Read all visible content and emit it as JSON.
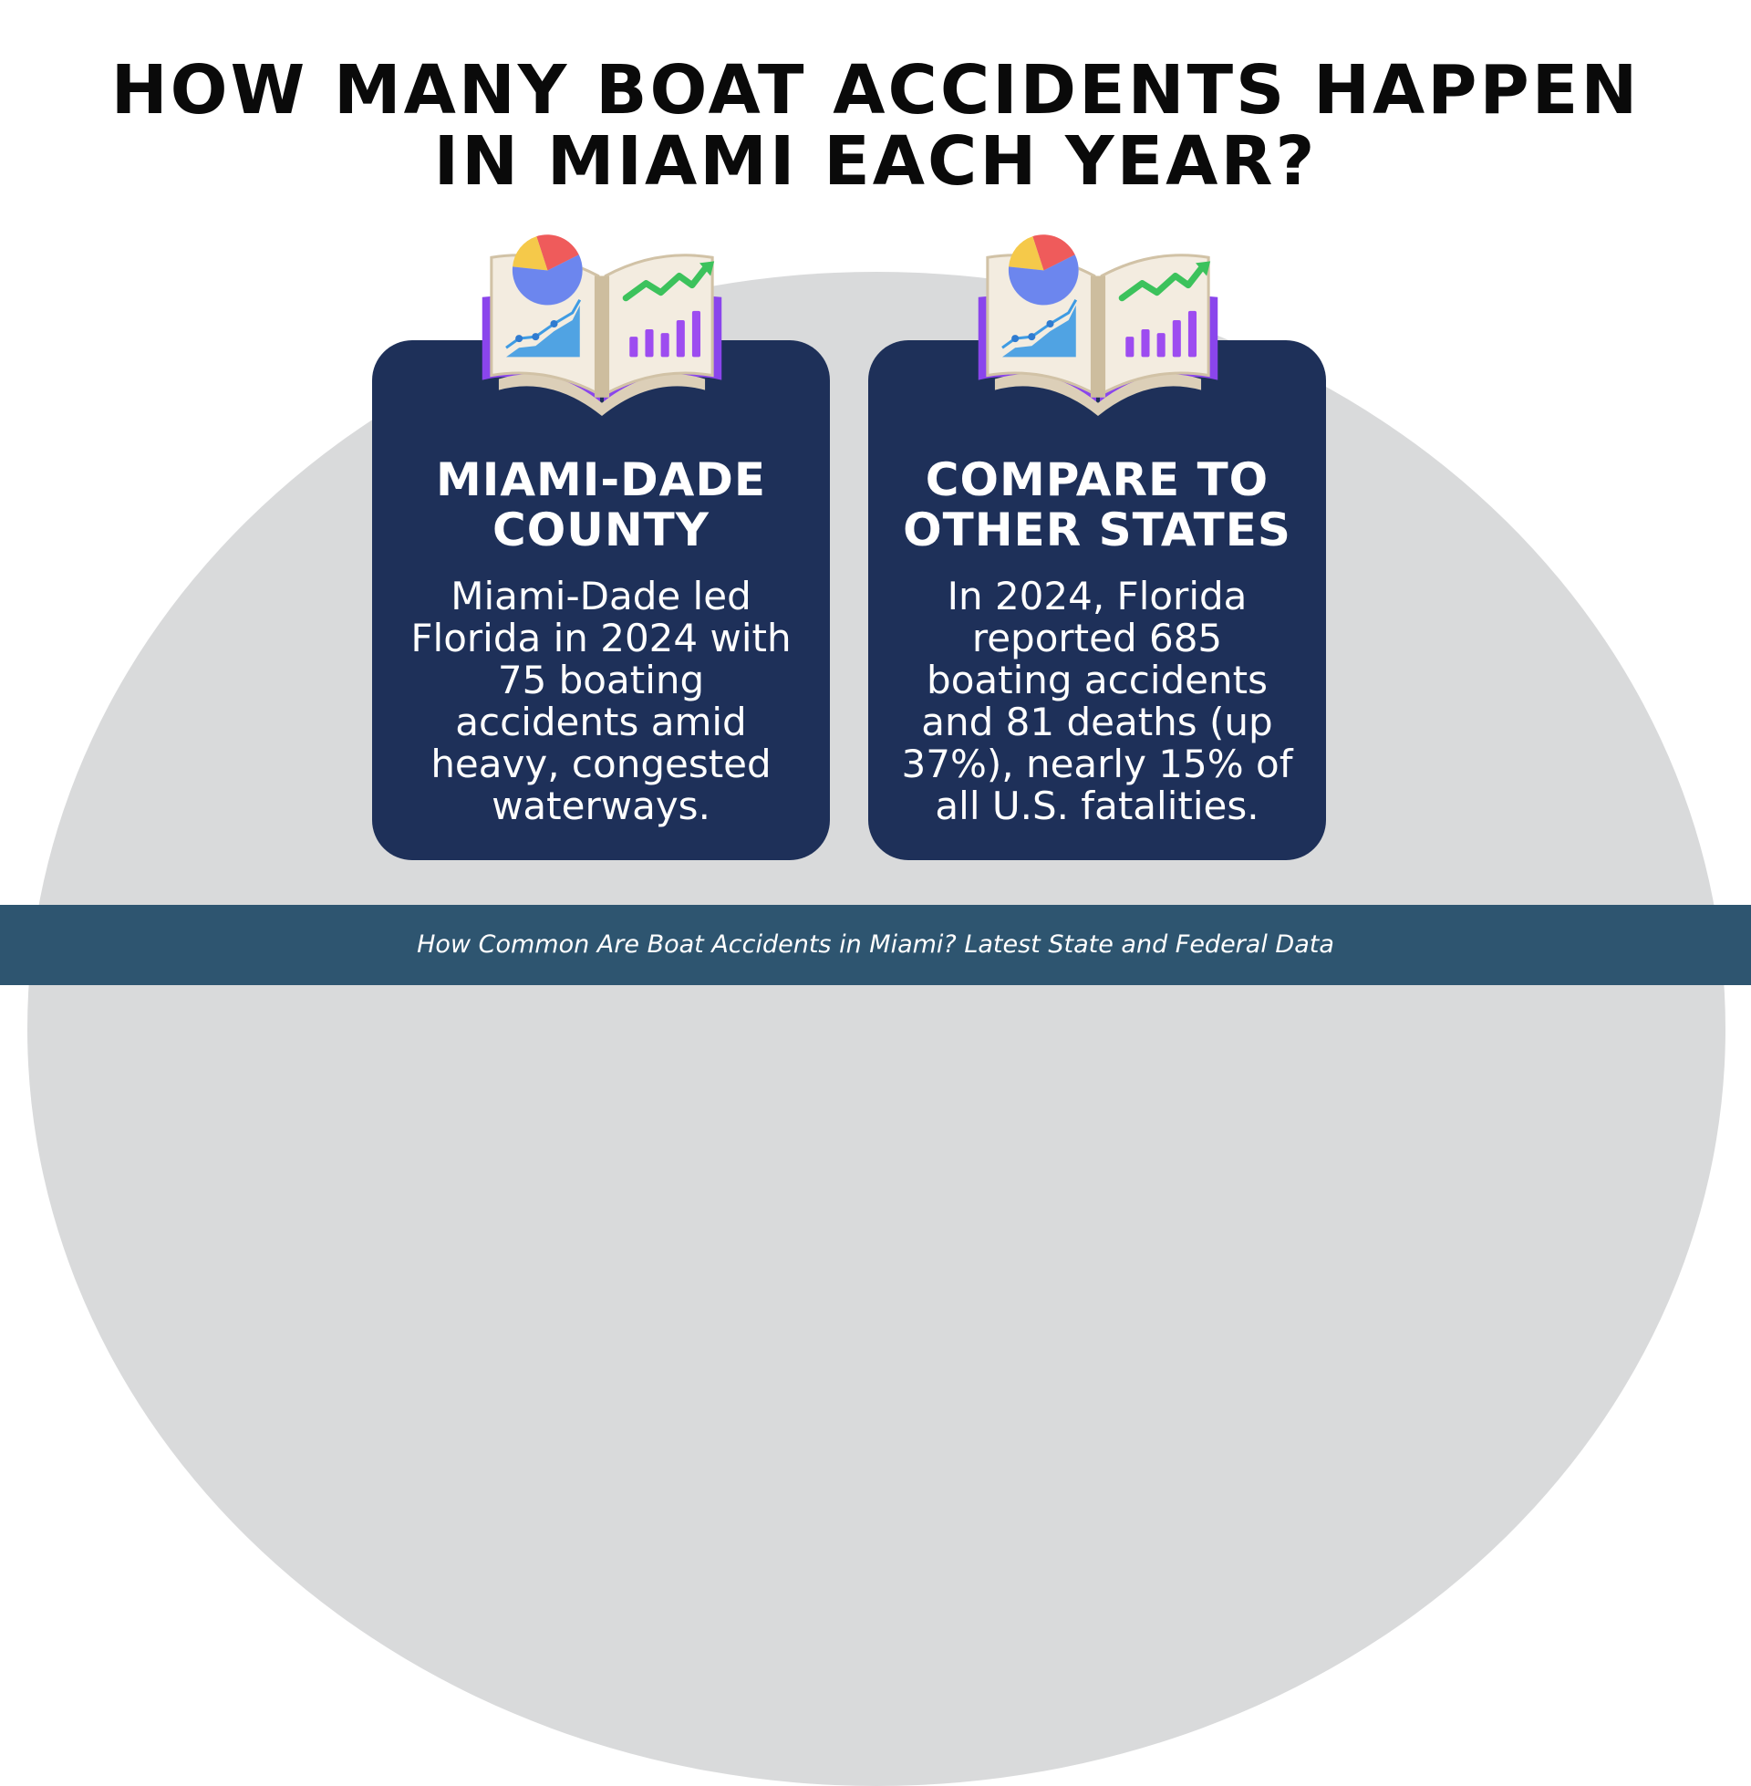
{
  "title": {
    "line1": "HOW MANY BOAT ACCIDENTS HAPPEN",
    "line2": "IN MIAMI EACH YEAR?"
  },
  "cards": [
    {
      "icon": "statistics-book-icon",
      "heading": [
        "MIAMI-DADE",
        "COUNTY"
      ],
      "body": [
        "Miami-Dade led",
        "Florida in 2024 with",
        "75 boating",
        "accidents amid",
        "heavy, congested",
        "waterways."
      ]
    },
    {
      "icon": "statistics-book-icon",
      "heading": [
        "COMPARE TO",
        "OTHER STATES"
      ],
      "body": [
        "In 2024, Florida",
        "reported 685",
        "boating accidents",
        "and 81 deaths (up",
        "37%), nearly 15% of",
        "all U.S. fatalities."
      ]
    }
  ],
  "footer": {
    "text": "How Common Are Boat Accidents in Miami? Latest State and Federal Data"
  },
  "colors": {
    "card_background": "#1e3059",
    "footer_background": "#2e5570",
    "arc_background": "#d9dadb",
    "title_text": "#0a0a0a"
  }
}
